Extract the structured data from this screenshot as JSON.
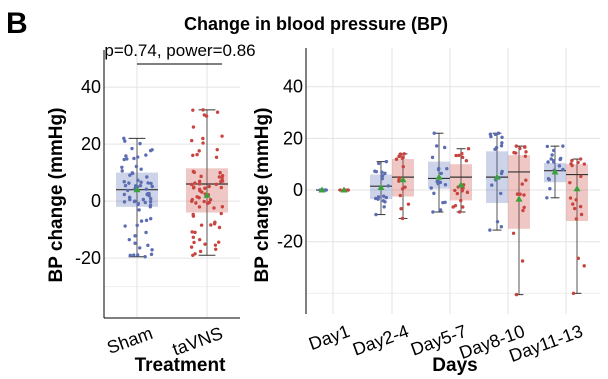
{
  "panel_label": "B",
  "title": "Change in blood pressure (BP)",
  "chart_data": [
    {
      "type": "box",
      "xlabel": "Treatment",
      "ylabel": "BP change (mmHg)",
      "ylim": [
        -41,
        53
      ],
      "yticks": [
        -20,
        0,
        20,
        40
      ],
      "grid": true,
      "annotation": "p=0.74, power=0.86",
      "categories": [
        "Sham",
        "taVNS"
      ],
      "colors": {
        "Sham": "#5b6db3",
        "taVNS": "#c9443f"
      },
      "boxes": [
        {
          "name": "Sham",
          "whisker_low": -19.5,
          "q1": -2,
          "median": 4,
          "q3": 10,
          "whisker_high": 22,
          "mean": 4
        },
        {
          "name": "taVNS",
          "whisker_low": -19,
          "q1": -4,
          "median": 6,
          "q3": 11.5,
          "whisker_high": 32,
          "mean": 2
        }
      ]
    },
    {
      "type": "box",
      "xlabel": "Days",
      "ylabel": "BP change (mmHg)",
      "ylim": [
        -48,
        55
      ],
      "yticks": [
        -20,
        0,
        20,
        40
      ],
      "grid": true,
      "categories": [
        "Day1",
        "Day2-4",
        "Day5-7",
        "Day8-10",
        "Day11-13"
      ],
      "series": [
        {
          "name": "Sham",
          "boxes": [
            {
              "q1": 0,
              "median": 0,
              "q3": 0,
              "whisker_low": 0,
              "whisker_high": 0,
              "mean": 0
            },
            {
              "q1": -3.5,
              "median": 1.5,
              "q3": 6,
              "whisker_low": -9.5,
              "whisker_high": 11,
              "mean": 1
            },
            {
              "q1": 0.5,
              "median": 4.5,
              "q3": 11,
              "whisker_low": -8.5,
              "whisker_high": 22,
              "mean": 5
            },
            {
              "q1": -5,
              "median": 5,
              "q3": 15,
              "whisker_low": -15.5,
              "whisker_high": 22,
              "mean": 5
            },
            {
              "q1": 3,
              "median": 7.5,
              "q3": 10.5,
              "whisker_low": -3,
              "whisker_high": 17,
              "mean": 7
            }
          ]
        },
        {
          "name": "taVNS",
          "boxes": [
            {
              "q1": 0,
              "median": 0,
              "q3": 0,
              "whisker_low": 0,
              "whisker_high": 0,
              "mean": 0
            },
            {
              "q1": -2.5,
              "median": 5,
              "q3": 12,
              "whisker_low": -11,
              "whisker_high": 14,
              "mean": 4
            },
            {
              "q1": -4,
              "median": 5,
              "q3": 10,
              "whisker_low": -8.5,
              "whisker_high": 16,
              "mean": 2
            },
            {
              "q1": -15,
              "median": 7,
              "q3": 13.5,
              "whisker_low": -40.5,
              "whisker_high": 17,
              "mean": -3.5
            },
            {
              "q1": -12,
              "median": 6,
              "q3": 10,
              "whisker_low": -40,
              "whisker_high": 12,
              "mean": 0.5
            }
          ]
        }
      ]
    }
  ]
}
